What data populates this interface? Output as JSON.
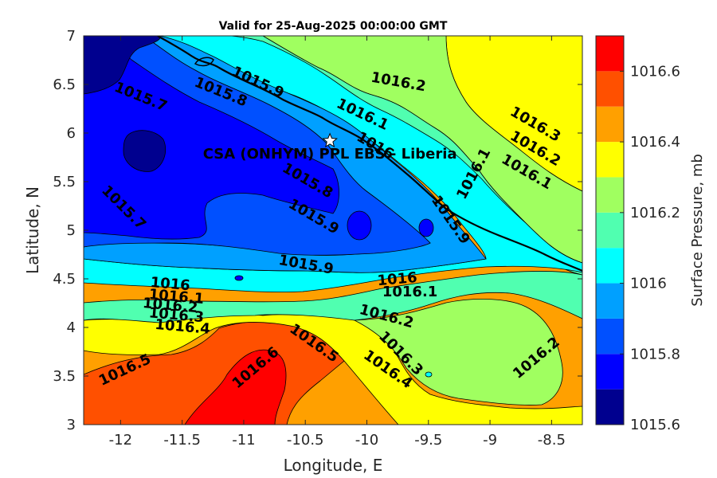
{
  "chart_data": {
    "type": "contour",
    "title": "Valid for 25-Aug-2025 00:00:00 GMT",
    "xlabel": "Longitude, E",
    "ylabel": "Latitude, N",
    "colorbar_label": "Surface Pressure, mb",
    "xlim": [
      -12.3,
      -8.25
    ],
    "ylim": [
      3,
      7
    ],
    "x_ticks": [
      "-12",
      "-11.5",
      "-11",
      "-10.5",
      "-10",
      "-9.5",
      "-9",
      "-8.5"
    ],
    "x_tick_values": [
      -12,
      -11.5,
      -11,
      -10.5,
      -10,
      -9.5,
      -9,
      -8.5
    ],
    "y_ticks": [
      "7",
      "6.5",
      "6",
      "5.5",
      "5",
      "4.5",
      "4",
      "3.5",
      "3"
    ],
    "y_tick_values": [
      7,
      6.5,
      6,
      5.5,
      5,
      4.5,
      4,
      3.5,
      3
    ],
    "levels": [
      1015.6,
      1015.7,
      1015.8,
      1015.9,
      1016,
      1016.1,
      1016.2,
      1016.3,
      1016.4,
      1016.5,
      1016.6,
      1016.7
    ],
    "level_colors": [
      "#00008f",
      "#0000ff",
      "#0050ff",
      "#00a0ff",
      "#00ffff",
      "#50ffb0",
      "#a0ff60",
      "#ffff00",
      "#ffa000",
      "#ff5000",
      "#ff0000",
      "#a00000"
    ],
    "colorbar_ticks": [
      "1016.6",
      "1016.4",
      "1016.2",
      "1016",
      "1015.8",
      "1015.6"
    ],
    "colorbar_tick_values": [
      1016.6,
      1016.4,
      1016.2,
      1016,
      1015.8,
      1015.6
    ],
    "contour_labels": [
      {
        "text": "1015.7",
        "lon": -11.85,
        "lat": 6.33
      },
      {
        "text": "1015.8",
        "lon": -11.2,
        "lat": 6.38
      },
      {
        "text": "1015.9",
        "lon": -10.9,
        "lat": 6.48
      },
      {
        "text": "1016.2",
        "lon": -9.75,
        "lat": 6.48
      },
      {
        "text": "1016.1",
        "lon": -10.05,
        "lat": 6.15
      },
      {
        "text": "1016.3",
        "lon": -8.65,
        "lat": 6.05
      },
      {
        "text": "1016.2",
        "lon": -8.65,
        "lat": 5.8
      },
      {
        "text": "1016.1",
        "lon": -8.72,
        "lat": 5.56
      },
      {
        "text": "1016.1",
        "lon": -9.1,
        "lat": 5.56
      },
      {
        "text": "1016",
        "lon": -9.95,
        "lat": 5.83
      },
      {
        "text": "1015.8",
        "lon": -10.5,
        "lat": 5.47
      },
      {
        "text": "1015.7",
        "lon": -12.0,
        "lat": 5.2
      },
      {
        "text": "1015.9",
        "lon": -10.45,
        "lat": 5.1
      },
      {
        "text": "1015.9",
        "lon": -9.35,
        "lat": 5.08
      },
      {
        "text": "1015.9",
        "lon": -10.5,
        "lat": 4.6
      },
      {
        "text": "1016",
        "lon": -11.6,
        "lat": 4.4
      },
      {
        "text": "1016.1",
        "lon": -11.55,
        "lat": 4.27
      },
      {
        "text": "1016.2",
        "lon": -11.6,
        "lat": 4.18
      },
      {
        "text": "1016.3",
        "lon": -11.55,
        "lat": 4.08
      },
      {
        "text": "1016.4",
        "lon": -11.5,
        "lat": 3.96
      },
      {
        "text": "1016",
        "lon": -9.75,
        "lat": 4.45
      },
      {
        "text": "1016.1",
        "lon": -9.65,
        "lat": 4.32
      },
      {
        "text": "1016.2",
        "lon": -9.85,
        "lat": 4.07
      },
      {
        "text": "1016.5",
        "lon": -10.45,
        "lat": 3.8
      },
      {
        "text": "1016.6",
        "lon": -10.88,
        "lat": 3.55
      },
      {
        "text": "1016.5",
        "lon": -11.95,
        "lat": 3.52
      },
      {
        "text": "1016.3",
        "lon": -9.75,
        "lat": 3.7
      },
      {
        "text": "1016.4",
        "lon": -9.85,
        "lat": 3.53
      },
      {
        "text": "1016.2",
        "lon": -8.6,
        "lat": 3.65
      }
    ],
    "site": {
      "name": "CSA (ONHYM) PPL EBS  - Liberia",
      "lon": -10.3,
      "lat": 5.92,
      "marker": "star"
    },
    "grid": false
  }
}
